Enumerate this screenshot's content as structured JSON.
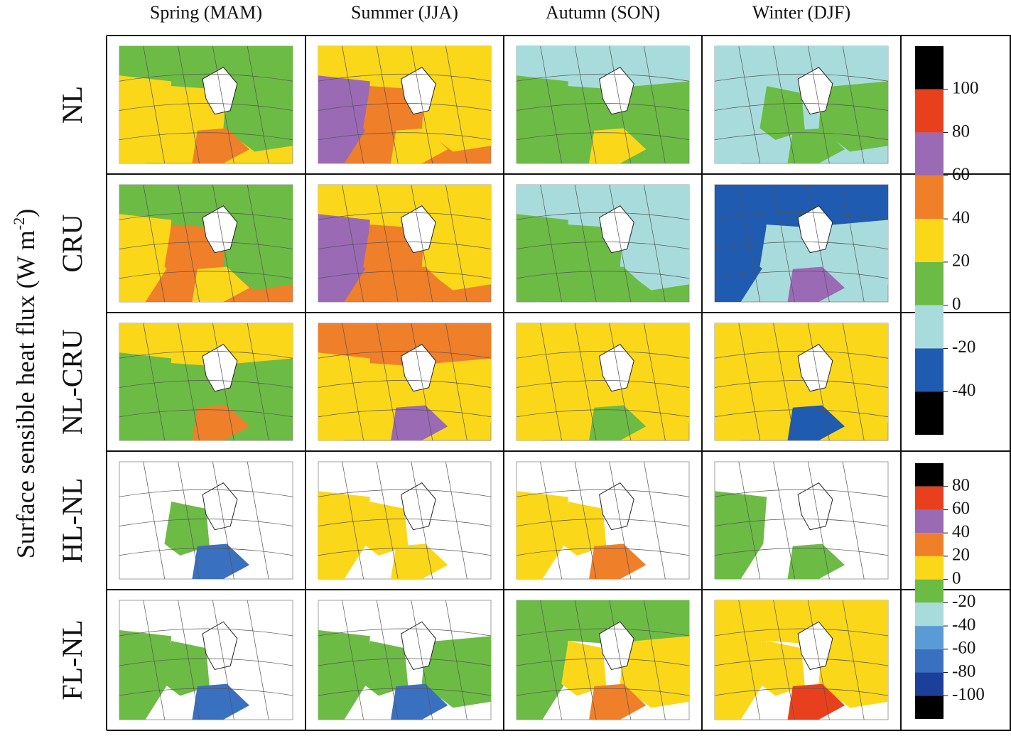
{
  "figure": {
    "ylabel": {
      "text": "Surface sensible heat flux (W m",
      "superscript": "-2",
      "end": ")"
    },
    "columns": [
      "Spring (MAM)",
      "Summer (JJA)",
      "Autumn (SON)",
      "Winter (DJF)"
    ],
    "rows": [
      "NL",
      "CRU",
      "NL-CRU",
      "HL-NL",
      "FL-NL"
    ],
    "colorbars": [
      {
        "ticks": [
          100,
          80,
          60,
          40,
          20,
          0,
          -20,
          -40
        ],
        "colors": [
          "#000000",
          "#e8401c",
          "#9b6ab5",
          "#f07f2a",
          "#fbd71a",
          "#6cbb45",
          "#a8dcdc",
          "#1f5bb0",
          "#000000"
        ]
      },
      {
        "ticks": [
          80,
          60,
          40,
          20,
          0,
          -20,
          -40,
          -60,
          -80,
          -100
        ],
        "colors": [
          "#000000",
          "#e8401c",
          "#9b6ab5",
          "#f07f2a",
          "#fbd71a",
          "#6cbb45",
          "#a8dcdc",
          "#5b9bd5",
          "#3a70c0",
          "#1c3f9a",
          "#000000"
        ]
      }
    ]
  }
}
